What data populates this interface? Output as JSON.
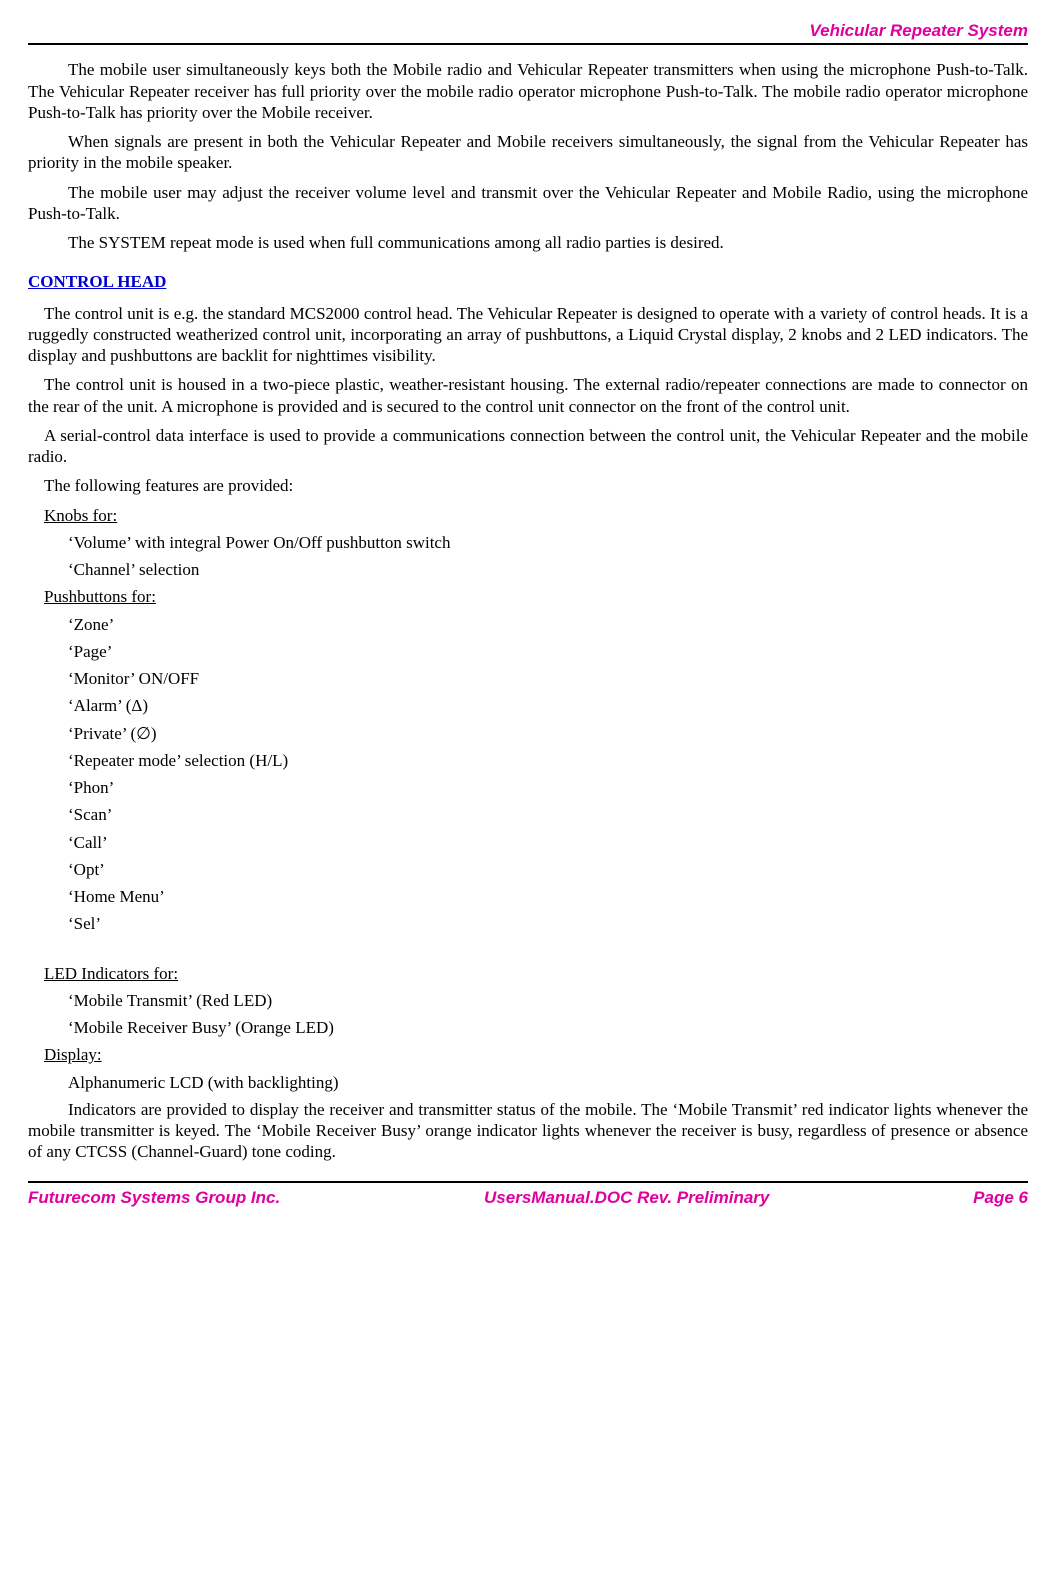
{
  "header": {
    "right_title": "Vehicular Repeater System"
  },
  "intro_paras": [
    "The mobile user simultaneously keys both the Mobile radio and Vehicular Repeater transmitters when using the microphone Push-to-Talk. The Vehicular Repeater receiver has full priority over the mobile radio operator microphone Push-to-Talk. The mobile radio operator microphone Push-to-Talk has priority over the Mobile receiver.",
    "When signals are present in both the Vehicular Repeater and Mobile receivers simultaneously, the signal from the Vehicular Repeater has priority in the mobile speaker.",
    "The mobile user may adjust the receiver volume level and transmit over the Vehicular Repeater and Mobile Radio, using the microphone Push-to-Talk.",
    "The SYSTEM repeat mode is used when full communications among all radio parties is desired."
  ],
  "control_head": {
    "title": "CONTROL HEAD",
    "paras": [
      "The control unit is e.g. the standard MCS2000 control head. The Vehicular Repeater is designed to operate with a variety of control heads. It is a ruggedly constructed weatherized control unit, incorporating an array of pushbuttons, a Liquid Crystal display, 2 knobs and 2 LED indicators. The display and pushbuttons are backlit for nighttimes visibility.",
      "The control unit is housed in a two-piece plastic, weather-resistant housing. The external radio/repeater connections are made to connector on the rear of the unit. A microphone is provided and is secured to the control unit connector on the front of the control unit.",
      "A serial-control data interface is used to provide a communications connection between the control unit, the Vehicular Repeater and the mobile radio.",
      "The following features are provided:"
    ],
    "knobs_label": "Knobs for:",
    "knobs": [
      "‘Volume’ with integral Power On/Off pushbutton switch",
      "‘Channel’ selection"
    ],
    "pushbuttons_label": "Pushbuttons for:",
    "pushbuttons": [
      "‘Zone’",
      "‘Page’",
      "‘Monitor’ ON/OFF",
      "‘Alarm’ (Δ)",
      "‘Private’ (∅)",
      "‘Repeater mode’ selection (H/L)",
      "‘Phon’",
      "‘Scan’",
      "‘Call’",
      "‘Opt’",
      "‘Home Menu’",
      "‘Sel’"
    ],
    "leds_label": "LED Indicators for:",
    "leds": [
      "‘Mobile Transmit’ (Red LED)",
      "‘Mobile Receiver Busy’ (Orange LED)"
    ],
    "display_label": "Display:",
    "display_items": [
      "Alphanumeric LCD (with backlighting)"
    ],
    "closing_para": "Indicators are provided to display the receiver and transmitter status of the mobile. The ‘Mobile Transmit’ red indicator lights whenever the mobile transmitter is keyed. The ‘Mobile Receiver Busy’ orange indicator lights whenever the receiver is busy, regardless of presence or absence of any CTCSS (Channel-Guard) tone coding."
  },
  "footer": {
    "left": "Futurecom Systems Group Inc.",
    "center": "UsersManual.DOC Rev. Preliminary",
    "right": "Page 6"
  },
  "styles": {
    "accent_color": "#e000a0",
    "heading_color": "#0000d0",
    "rule_color": "#000000",
    "body_font": "Times New Roman",
    "header_footer_font": "Arial",
    "body_fontsize_pt": 12,
    "header_footer_fontsize_pt": 12
  }
}
